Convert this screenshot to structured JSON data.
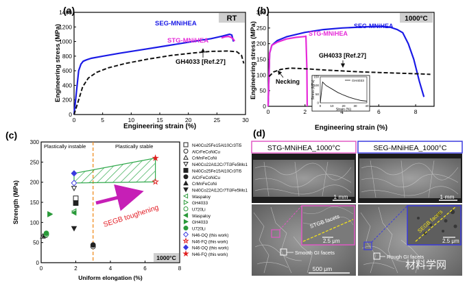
{
  "chart_data": [
    {
      "panel": "(a)",
      "type": "line",
      "title": "RT",
      "xlabel": "Engineering strain (%)",
      "ylabel": "Engineering stress (MPa)",
      "xlim": [
        0,
        30
      ],
      "ylim": [
        0,
        1400
      ],
      "xticks": [
        "0",
        "5",
        "10",
        "15",
        "20",
        "25",
        "30"
      ],
      "yticks": [
        "0",
        "200",
        "400",
        "600",
        "800",
        "1000",
        "1200",
        "1400"
      ],
      "series": [
        {
          "name": "SEG-MNiHEA",
          "color": "#1a1ae6",
          "style": "solid",
          "x": [
            0,
            0.8,
            1.2,
            1.6,
            2.2,
            3,
            5,
            8,
            12,
            16,
            20,
            24,
            26,
            27.2,
            27.6,
            27.9
          ],
          "y": [
            0,
            600,
            690,
            730,
            750,
            770,
            800,
            840,
            890,
            940,
            990,
            1040,
            1075,
            1100,
            1090,
            1000
          ]
        },
        {
          "name": "STG-MNiHEA",
          "color": "#e62ad8",
          "style": "solid",
          "x": [
            25.8,
            26.4,
            27,
            27.4,
            27.8,
            28.1
          ],
          "y": [
            1050,
            1065,
            1070,
            1060,
            1040,
            1005
          ]
        },
        {
          "name": "GH4033 [Ref.27]",
          "color": "#111111",
          "style": "dashed",
          "x": [
            0,
            0.8,
            1.5,
            2.5,
            4,
            6,
            9,
            13,
            17,
            21,
            24,
            27,
            28.5,
            29.3,
            29.7
          ],
          "y": [
            0,
            200,
            380,
            500,
            580,
            640,
            700,
            760,
            810,
            845,
            865,
            870,
            860,
            810,
            700
          ]
        }
      ]
    },
    {
      "panel": "(b)",
      "type": "line",
      "title": "1000°C",
      "xlabel": "Engineering strain (%)",
      "ylabel": "Engineering stress (MPa)",
      "xlim": [
        0,
        9
      ],
      "ylim": [
        0,
        300
      ],
      "xticks": [
        "0",
        "2",
        "4",
        "6",
        "8"
      ],
      "yticks": [
        "0",
        "50",
        "100",
        "150",
        "200",
        "250",
        "300"
      ],
      "annotation": "Necking",
      "series": [
        {
          "name": "SEG-MNiHEA",
          "color": "#1a1ae6",
          "style": "solid",
          "x": [
            0,
            0.08,
            0.2,
            0.5,
            1,
            2,
            3,
            4,
            5,
            6,
            6.6,
            7,
            7.3,
            7.6,
            7.9,
            8.2,
            8.45
          ],
          "y": [
            0,
            170,
            195,
            210,
            222,
            236,
            245,
            250,
            253,
            255,
            253,
            245,
            235,
            200,
            150,
            80,
            30
          ]
        },
        {
          "name": "STG-MNiHEA",
          "color": "#e62ad8",
          "style": "solid",
          "x": [
            0,
            0.08,
            0.2,
            0.5,
            1,
            1.5,
            2,
            2.05,
            2.1,
            2.12
          ],
          "y": [
            0,
            170,
            195,
            205,
            215,
            220,
            223,
            224,
            120,
            0
          ]
        },
        {
          "name": "GH4033 [Ref.27]",
          "color": "#111111",
          "style": "dashed",
          "x": [
            0.05,
            0.3,
            0.7,
            1.2,
            2,
            3,
            4,
            5,
            6,
            7,
            8,
            8.8
          ],
          "y": [
            95,
            110,
            118,
            122,
            120,
            116,
            113,
            110,
            108,
            106,
            104,
            102
          ]
        }
      ],
      "inset": {
        "ylabel": "Stress (MPa)",
        "xlabel": "Strain (%)",
        "legend": "GH4033",
        "xticks": [
          "0",
          "10",
          "20",
          "30",
          "40"
        ],
        "yticks": [
          "0",
          "50",
          "100",
          "150"
        ],
        "x": [
          0,
          2,
          5,
          10,
          15,
          20,
          25,
          30,
          35,
          40
        ],
        "y": [
          0,
          120,
          100,
          80,
          60,
          45,
          32,
          22,
          14,
          10
        ]
      }
    },
    {
      "panel": "(c)",
      "type": "scatter",
      "xlabel": "Uniform elongation (%)",
      "ylabel": "Strength (MPa)",
      "xlim": [
        0,
        8
      ],
      "ylim": [
        0,
        300
      ],
      "xticks": [
        "0",
        "2",
        "4",
        "6",
        "8"
      ],
      "yticks": [
        "0",
        "50",
        "100",
        "150",
        "200",
        "250",
        "300"
      ],
      "region_left": "Plastically instable",
      "region_right": "Plastically stable",
      "divider_x": 3,
      "arrow_label": "SEGB toughening",
      "temperature_label": "1000°C",
      "series": [
        {
          "name": "Ni40Co25Fe15Al10Cr3Ti5",
          "marker": "square-open",
          "color": "#222222",
          "x": [
            2.0
          ],
          "y": [
            160
          ]
        },
        {
          "name": "AlCrFeCoNiCu",
          "marker": "circle-open",
          "color": "#222222",
          "x": [
            3.0
          ],
          "y": [
            40
          ]
        },
        {
          "name": "CrMnFeCoNi",
          "marker": "triangle-open",
          "color": "#222222",
          "x": [
            0.1
          ],
          "y": [
            66
          ]
        },
        {
          "name": "Ni40Co22Al12Cr7Ti3Fe5Mo1",
          "marker": "tri-down-open",
          "color": "#222222",
          "x": [
            1.9
          ],
          "y": [
            185
          ]
        },
        {
          "name": "Ni40Co25Fe15Al10Cr3Ti5",
          "marker": "square-half",
          "color": "#222222",
          "x": [
            2.0
          ],
          "y": [
            148
          ]
        },
        {
          "name": "AlCrFeCoNiCu",
          "marker": "circle-half",
          "color": "#222222",
          "x": [
            3.0
          ],
          "y": [
            44
          ]
        },
        {
          "name": "CrMnFeCoNi",
          "marker": "triangle-half",
          "color": "#222222",
          "x": [
            0.2
          ],
          "y": [
            68
          ]
        },
        {
          "name": "Ni40Co22Al12Cr7Ti3Fe5Mo1",
          "marker": "tri-down-filled",
          "color": "#222222",
          "x": [
            1.9
          ],
          "y": [
            85
          ]
        },
        {
          "name": "Waspaloy",
          "marker": "tri-left-open",
          "color": "#2a9a3a",
          "x": [
            1.9
          ],
          "y": [
            128
          ]
        },
        {
          "name": "GH4033",
          "marker": "tri-right-open",
          "color": "#2a9a3a",
          "x": [
            0.5
          ],
          "y": [
            120
          ]
        },
        {
          "name": "U720Li",
          "marker": "circle-open",
          "color": "#2a9a3a",
          "x": [
            0.3
          ],
          "y": [
            70
          ]
        },
        {
          "name": "Waspaloy",
          "marker": "tri-left-half",
          "color": "#2a9a3a",
          "x": [
            1.9
          ],
          "y": [
            124
          ]
        },
        {
          "name": "GH4033",
          "marker": "tri-right-half",
          "color": "#2a9a3a",
          "x": [
            0.5
          ],
          "y": [
            121
          ]
        },
        {
          "name": "U720Li",
          "marker": "circle-half",
          "color": "#2a9a3a",
          "x": [
            0.3
          ],
          "y": [
            73
          ]
        },
        {
          "name": "N46-OQ (this work)",
          "marker": "diamond-open",
          "color": "#3a3adf",
          "x": [
            1.9
          ],
          "y": [
            198
          ]
        },
        {
          "name": "N46-FQ (this work)",
          "marker": "star-open",
          "color": "#e02020",
          "x": [
            6.6
          ],
          "y": [
            201
          ]
        },
        {
          "name": "N46-OQ (this work)",
          "marker": "diamond-half",
          "color": "#3a3adf",
          "x": [
            1.9
          ],
          "y": [
            222
          ]
        },
        {
          "name": "N46-FQ (this work)",
          "marker": "star-half",
          "color": "#e02020",
          "x": [
            6.6
          ],
          "y": [
            260
          ]
        }
      ]
    }
  ],
  "panel_d": {
    "label": "(d)",
    "left_title": "STG-MNiHEA_1000°C",
    "right_title": "SEG-MNiHEA_1000°C",
    "left_scale_top": "1 mm",
    "right_scale_top": "1 mm",
    "left_inset_label": "STGB facets",
    "left_inset_scale": "2.5 μm",
    "right_inset_label": "SEGB facets",
    "right_inset_scale": "2.5 μm",
    "left_annotation": "Smooth GI facets",
    "right_annotation": "Rough GI facets",
    "bottom_scale": "500 μm",
    "watermark": "材料学网"
  }
}
